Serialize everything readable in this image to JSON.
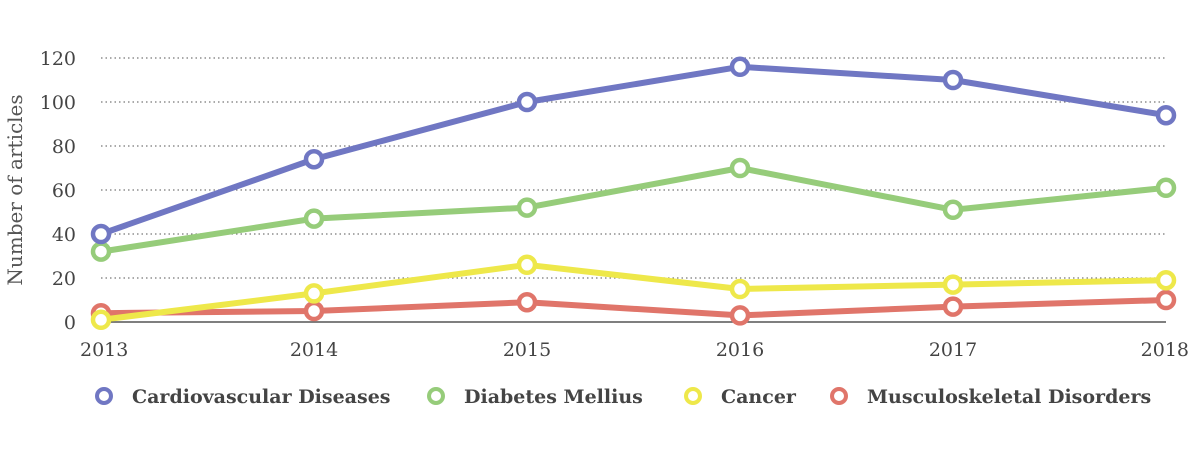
{
  "chart_data": {
    "type": "line",
    "title": "",
    "xlabel": "",
    "ylabel": "Number of articles",
    "x": [
      "2013",
      "2014",
      "2015",
      "2016",
      "2017",
      "2018"
    ],
    "ylim": [
      0,
      120
    ],
    "yticks": [
      0,
      20,
      40,
      60,
      80,
      100,
      120
    ],
    "grid": "horizontal dotted",
    "legend_position": "bottom",
    "series": [
      {
        "name": "Cardiovascular Diseases",
        "color": "#7077c3",
        "values": [
          40,
          74,
          100,
          116,
          110,
          94
        ]
      },
      {
        "name": "Diabetes Mellius",
        "color": "#96cc7a",
        "values": [
          32,
          47,
          52,
          70,
          51,
          61
        ]
      },
      {
        "name": "Cancer",
        "color": "#eee84a",
        "values": [
          1,
          13,
          26,
          15,
          17,
          19
        ]
      },
      {
        "name": "Musculoskeletal Disorders",
        "color": "#e0756a",
        "values": [
          4,
          5,
          9,
          3,
          7,
          10
        ]
      }
    ]
  }
}
